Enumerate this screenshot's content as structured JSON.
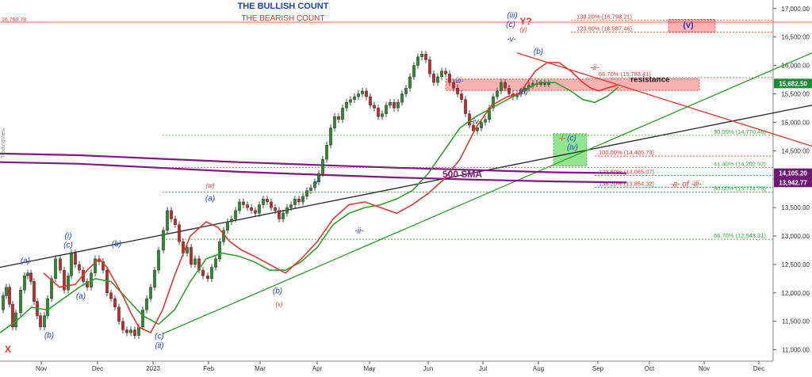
{
  "titles": {
    "bullish": "THE BULLISH COUNT",
    "bearish": "THE BEARISH COUNT"
  },
  "watermark": "TradingView",
  "colors": {
    "red": "#e8352a",
    "green": "#2e9e2a",
    "blue": "#1a3fcf",
    "purple": "#7b1b7e",
    "black": "#222222",
    "fib_red": "#e8352a",
    "fib_green": "#3aa83a",
    "zone": "#f08080"
  },
  "chart_data": {
    "type": "line",
    "ylim": [
      10800,
      17150
    ],
    "y_ticks": [
      11000,
      11500,
      12000,
      12500,
      13000,
      13500,
      14000,
      14500,
      15000,
      15500,
      16000,
      16500,
      17000
    ],
    "y_tick_labels": [
      "11,000.00",
      "11,500.00",
      "12,000.00",
      "12,500.00",
      "13,000.00",
      "13,500.00",
      "14,000.00",
      "14,500.00",
      "15,000.00",
      "15,500.00",
      "16,000.00",
      "16,500.00",
      "17,000.00"
    ],
    "x_labels": [
      "Nov",
      "Dec",
      "2023",
      "Feb",
      "Mar",
      "Apr",
      "May",
      "Jun",
      "Jul",
      "Aug",
      "Sep",
      "Oct",
      "Nov",
      "Dec"
    ],
    "price_series": {
      "x": [
        0,
        4,
        8,
        12,
        16,
        20,
        26,
        31,
        35,
        39,
        43,
        47,
        51,
        56,
        60,
        65,
        70,
        76,
        81,
        86,
        90,
        95,
        100,
        105,
        110,
        115,
        120,
        125,
        130,
        135,
        140,
        145,
        150,
        155,
        160,
        165,
        170,
        175,
        180,
        185,
        190,
        195,
        200,
        206,
        211,
        216,
        221,
        226,
        231,
        236,
        241,
        246,
        251,
        256,
        262,
        267,
        272,
        277,
        282,
        287,
        292,
        297,
        302,
        307,
        312,
        317,
        322,
        327,
        332,
        337,
        342,
        347,
        352,
        357,
        362,
        367,
        372,
        377,
        382,
        387,
        392,
        397,
        402,
        407,
        412,
        417,
        422,
        427,
        432,
        437,
        442,
        447,
        452,
        457,
        462,
        467,
        472,
        477,
        482,
        487,
        492,
        497,
        502,
        507,
        512,
        517,
        522,
        527,
        532,
        537,
        542,
        547,
        552,
        557,
        562,
        567,
        572,
        577,
        582,
        587,
        592,
        597,
        602,
        607,
        612,
        617,
        622,
        627,
        632,
        637,
        642,
        647,
        652,
        657,
        662,
        667,
        672,
        677,
        682,
        687,
        692,
        697,
        702,
        707,
        712,
        717,
        722,
        727,
        732,
        737,
        742,
        747,
        752,
        757,
        762,
        767,
        772,
        777,
        782
      ],
      "values": [
        11700,
        11950,
        12100,
        11800,
        11400,
        11650,
        12050,
        12300,
        12350,
        12200,
        11850,
        11600,
        11400,
        11600,
        11900,
        12250,
        12600,
        12400,
        12050,
        12300,
        12700,
        12500,
        12400,
        12200,
        12100,
        12350,
        12600,
        12550,
        12400,
        12000,
        11900,
        11750,
        11500,
        11350,
        11300,
        11350,
        11250,
        11400,
        11700,
        11900,
        12100,
        12400,
        12750,
        13100,
        13450,
        13300,
        13200,
        12900,
        12700,
        12800,
        12500,
        12600,
        12400,
        12300,
        12250,
        12450,
        12600,
        12900,
        13100,
        13250,
        13300,
        13450,
        13600,
        13550,
        13500,
        13450,
        13400,
        13550,
        13650,
        13600,
        13500,
        13450,
        13300,
        13400,
        13500,
        13550,
        13650,
        13600,
        13700,
        13800,
        13850,
        13950,
        14100,
        14350,
        14600,
        14900,
        15100,
        15050,
        15250,
        15350,
        15400,
        15450,
        15500,
        15550,
        15450,
        15300,
        15250,
        15100,
        15150,
        15300,
        15350,
        15250,
        15350,
        15500,
        15600,
        15800,
        16000,
        16150,
        16200,
        16100,
        15850,
        15700,
        15800,
        15900,
        15850,
        15700,
        15600,
        15500,
        15400,
        15150,
        14950,
        14850,
        14900,
        15000,
        15050,
        15250,
        15450,
        15550,
        15700,
        15600,
        15500,
        15450,
        15500,
        15550,
        15600,
        15650,
        15680,
        15682,
        15682,
        15682,
        15682,
        15682,
        15682,
        15682,
        15682,
        15682,
        15682,
        15682,
        15682,
        15682,
        15682,
        15682,
        15682,
        15682,
        15682,
        15682,
        15682,
        15682,
        15682
      ],
      "note_ignore_tail": true
    },
    "ema_red": {
      "x": [
        55,
        75,
        95,
        110,
        125,
        135,
        145,
        155,
        165,
        175,
        190,
        205,
        220,
        240,
        260,
        275,
        290,
        305,
        320,
        340,
        360,
        380,
        400,
        420,
        440,
        460,
        480,
        500,
        520,
        540,
        560,
        580,
        600,
        620,
        640,
        655,
        665,
        675,
        690,
        705,
        720,
        735,
        745,
        755,
        765,
        778
      ],
      "values": [
        12350,
        12100,
        12150,
        12400,
        12600,
        12450,
        12200,
        11950,
        11650,
        11400,
        11300,
        11700,
        12300,
        13000,
        13250,
        13150,
        12900,
        12750,
        12650,
        12500,
        12350,
        12600,
        12900,
        13300,
        13550,
        13600,
        13500,
        13400,
        13550,
        13750,
        14000,
        14350,
        14900,
        15300,
        15450,
        15500,
        15700,
        15900,
        16050,
        16050,
        15900,
        15700,
        15600,
        15550,
        15600,
        15650
      ]
    },
    "ema_green": {
      "x": [
        0,
        20,
        40,
        60,
        80,
        100,
        120,
        140,
        160,
        180,
        200,
        220,
        240,
        260,
        280,
        300,
        320,
        340,
        360,
        380,
        400,
        420,
        440,
        460,
        480,
        500,
        520,
        540,
        560,
        580,
        600,
        620,
        640,
        660,
        680,
        700,
        720,
        735,
        750,
        765,
        780
      ],
      "values": [
        11300,
        11500,
        11750,
        11700,
        11900,
        12100,
        12250,
        12200,
        11900,
        11600,
        11450,
        11700,
        12200,
        12600,
        12700,
        12650,
        12550,
        12400,
        12400,
        12550,
        12800,
        13200,
        13400,
        13500,
        13550,
        13650,
        13800,
        14100,
        14500,
        14900,
        15100,
        15250,
        15400,
        15550,
        15700,
        15700,
        15550,
        15400,
        15350,
        15450,
        15620
      ]
    },
    "sma500": {
      "name": "500 SMA",
      "x": [
        0,
        100,
        200,
        300,
        400,
        500,
        600,
        700,
        790
      ],
      "values": [
        14300,
        14270,
        14200,
        14130,
        14080,
        14030,
        13990,
        13960,
        13942
      ]
    },
    "sma_purple2": {
      "x": [
        0,
        100,
        200,
        300,
        400,
        500,
        600,
        700,
        790
      ],
      "values": [
        14450,
        14420,
        14360,
        14300,
        14250,
        14200,
        14160,
        14120,
        14105
      ]
    },
    "trendlines": [
      {
        "name": "black",
        "x": [
          0,
          1024
        ],
        "y": [
          12450,
          15300
        ],
        "color": "black"
      },
      {
        "name": "green",
        "x": [
          205,
          1024
        ],
        "y": [
          11280,
          16220
        ],
        "color": "green"
      },
      {
        "name": "red",
        "x": [
          652,
          1024
        ],
        "y": [
          16220,
          14580
        ],
        "color": "red"
      },
      {
        "name": "red-top",
        "x": [
          0,
          1024
        ],
        "y": [
          16760,
          16760
        ],
        "color": "red"
      }
    ],
    "fib_levels": [
      {
        "label": "138.20% (16,798.21)",
        "value": 16798.21,
        "x0": 720,
        "color": "red",
        "style": "dotted"
      },
      {
        "label": "123.60% (16,587.46)",
        "value": 16587.46,
        "x0": 720,
        "color": "red",
        "style": "dotted"
      },
      {
        "label": "66.70% (15,783.41)",
        "value": 15783.41,
        "x0": 740,
        "color": "red",
        "style": "dotted"
      },
      {
        "label": "30.00% (14,770.48)",
        "value": 14770.48,
        "x0": 205,
        "color": "green",
        "style": "dotted"
      },
      {
        "label": "100.00% (14,405.73)",
        "value": 14405.73,
        "x0": 750,
        "color": "red",
        "style": "dotted"
      },
      {
        "label": "41.40% (14,202.92)",
        "value": 14202.92,
        "x0": 205,
        "color": "green",
        "style": "dotted"
      },
      {
        "label": "123.60% (14,065.07)",
        "value": 14065.07,
        "x0": 750,
        "color": "red",
        "style": "dotted"
      },
      {
        "label": "138.20% (13,854.32)",
        "value": 13854.32,
        "x0": 750,
        "color": "red",
        "style": "dotted"
      },
      {
        "label": "50.00% (13,774.75)",
        "value": 13774.75,
        "x0": 205,
        "color": "green",
        "style": "dotted"
      },
      {
        "label": "66.70% (12,943.31)",
        "value": 12943.31,
        "x0": 205,
        "color": "green",
        "style": "dotted"
      }
    ],
    "price_tags": [
      {
        "label": "16,760.78",
        "value": 16760.78,
        "side": "left",
        "color": "red"
      },
      {
        "label": "15,682.50",
        "value": 15682.5,
        "side": "right",
        "color": "green"
      },
      {
        "label": "14,105.20",
        "value": 14105.2,
        "side": "right",
        "color": "purple"
      },
      {
        "label": "13,942.77",
        "value": 13942.77,
        "side": "right",
        "color": "purple"
      }
    ],
    "zones": [
      {
        "name": "resistance",
        "x0": 562,
        "x1": 882,
        "y0": 15560,
        "y1": 15760,
        "color": "red",
        "label": "resistance"
      },
      {
        "name": "v-target",
        "x0": 843,
        "x1": 902,
        "y0": 16580,
        "y1": 16810,
        "color": "red",
        "label": "(v)"
      },
      {
        "name": "iv-box",
        "x0": 698,
        "x1": 740,
        "y0": 14230,
        "y1": 14800,
        "color": "green",
        "label": ""
      }
    ],
    "wave_labels": [
      {
        "t": "X",
        "x": 10,
        "y": 10950,
        "c": "red",
        "b": true,
        "s": 12
      },
      {
        "t": "(a)",
        "x": 32,
        "y": 12530,
        "c": "blue",
        "s": 10
      },
      {
        "t": "(i)",
        "x": 86,
        "y": 12960,
        "c": "blue",
        "s": 10
      },
      {
        "t": "(c)",
        "x": 86,
        "y": 12800,
        "c": "blue",
        "s": 10
      },
      {
        "t": "(b)",
        "x": 147,
        "y": 12820,
        "c": "blue",
        "s": 10
      },
      {
        "t": "(a)",
        "x": 102,
        "y": 11900,
        "c": "blue",
        "s": 10
      },
      {
        "t": "(b)",
        "x": 62,
        "y": 11210,
        "c": "blue",
        "s": 10
      },
      {
        "t": "(c)",
        "x": 201,
        "y": 11200,
        "c": "blue",
        "s": 10
      },
      {
        "t": "(ii)",
        "x": 201,
        "y": 11030,
        "c": "blue",
        "s": 10
      },
      {
        "t": "(w)",
        "x": 265,
        "y": 13850,
        "c": "red",
        "s": 8
      },
      {
        "t": "(a)",
        "x": 265,
        "y": 13620,
        "c": "blue",
        "s": 10
      },
      {
        "t": "(b)",
        "x": 350,
        "y": 11990,
        "c": "blue",
        "s": 10
      },
      {
        "t": "(x)",
        "x": 352,
        "y": 11760,
        "c": "red",
        "s": 8
      },
      {
        "t": "-i-",
        "x": 400,
        "y": 13920,
        "c": "blue",
        "s": 10
      },
      {
        "t": "-ii-",
        "x": 453,
        "y": 13050,
        "c": "blue",
        "s": 10
      },
      {
        "t": "500 SMA",
        "x": 583,
        "y": 14030,
        "c": "#7b1b7e",
        "b": true,
        "s": 12
      },
      {
        "t": "-iii-",
        "x": 578,
        "y": 15690,
        "c": "blue",
        "s": 10
      },
      {
        "t": "-iv-",
        "x": 600,
        "y": 14970,
        "c": "blue",
        "s": 10
      },
      {
        "t": "(iii)",
        "x": 646,
        "y": 16840,
        "c": "blue",
        "s": 10
      },
      {
        "t": "(c)",
        "x": 644,
        "y": 16680,
        "c": "blue",
        "s": 10
      },
      {
        "t": "Y?",
        "x": 663,
        "y": 16720,
        "c": "red",
        "b": true,
        "s": 12
      },
      {
        "t": "(y)",
        "x": 660,
        "y": 16590,
        "c": "red",
        "s": 8
      },
      {
        "t": "-v-",
        "x": 645,
        "y": 16420,
        "c": "blue",
        "s": 10
      },
      {
        "t": "(b)",
        "x": 679,
        "y": 16200,
        "c": "blue",
        "s": 10
      },
      {
        "t": "(a)",
        "x": 660,
        "y": 15500,
        "c": "blue",
        "s": 10
      },
      {
        "t": "-ii-",
        "x": 750,
        "y": 15920,
        "c": "red",
        "s": 10
      },
      {
        "t": "-i-",
        "x": 709,
        "y": 14680,
        "c": "red",
        "s": 10
      },
      {
        "t": "(c)",
        "x": 721,
        "y": 14680,
        "c": "blue",
        "s": 10
      },
      {
        "t": "(iv)",
        "x": 722,
        "y": 14520,
        "c": "blue",
        "s": 10
      },
      {
        "t": "-a- of -iii-",
        "x": 865,
        "y": 13870,
        "c": "red",
        "s": 10
      },
      {
        "t": "resistance",
        "x": 820,
        "y": 15710,
        "c": "#222222",
        "b": true,
        "s": 10
      },
      {
        "t": "(v)",
        "x": 868,
        "y": 16660,
        "c": "blue",
        "b": true,
        "s": 11
      }
    ]
  }
}
